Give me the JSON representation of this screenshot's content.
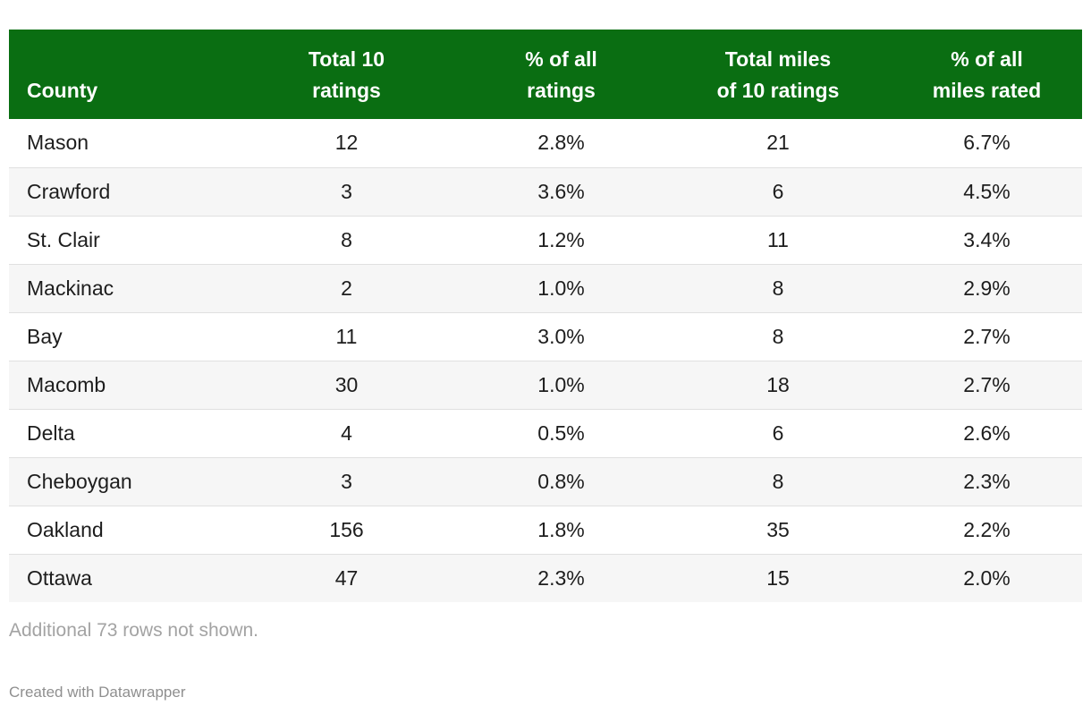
{
  "chart_data": {
    "type": "table",
    "columns": [
      "County",
      "Total 10 ratings",
      "% of all ratings",
      "Total miles of 10 ratings",
      "% of all miles rated"
    ],
    "rows": [
      [
        "Mason",
        "12",
        "2.8%",
        "21",
        "6.7%"
      ],
      [
        "Crawford",
        "3",
        "3.6%",
        "6",
        "4.5%"
      ],
      [
        "St. Clair",
        "8",
        "1.2%",
        "11",
        "3.4%"
      ],
      [
        "Mackinac",
        "2",
        "1.0%",
        "8",
        "2.9%"
      ],
      [
        "Bay",
        "11",
        "3.0%",
        "8",
        "2.7%"
      ],
      [
        "Macomb",
        "30",
        "1.0%",
        "18",
        "2.7%"
      ],
      [
        "Delta",
        "4",
        "0.5%",
        "6",
        "2.6%"
      ],
      [
        "Cheboygan",
        "3",
        "0.8%",
        "8",
        "2.3%"
      ],
      [
        "Oakland",
        "156",
        "1.8%",
        "35",
        "2.2%"
      ],
      [
        "Ottawa",
        "47",
        "2.3%",
        "15",
        "2.0%"
      ]
    ],
    "layout_hints": {
      "header_align": "center",
      "first_column_align": "left",
      "zebra_striping": true
    }
  },
  "header": {
    "col0": {
      "line1": "County",
      "line2": ""
    },
    "col1": {
      "line1": "Total 10",
      "line2": "ratings"
    },
    "col2": {
      "line1": "% of all",
      "line2": "ratings"
    },
    "col3": {
      "line1": "Total miles",
      "line2": "of 10 ratings"
    },
    "col4": {
      "line1": "% of all",
      "line2": "miles rated"
    }
  },
  "footer": {
    "additional_note": "Additional 73 rows not shown.",
    "attribution": "Created with Datawrapper"
  },
  "colors": {
    "header_bg": "#0a6e12",
    "header_text": "#ffffff",
    "row_stripe_bg": "#f6f6f6",
    "row_border": "#e0e0e0",
    "cell_text": "#1d1d1d",
    "note_text": "#a3a3a3",
    "attribution_text": "#8f8f8f"
  }
}
